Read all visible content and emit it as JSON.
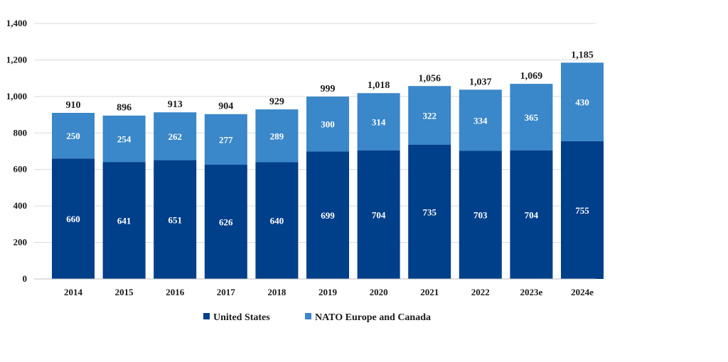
{
  "chart_data": {
    "type": "bar",
    "stacked": true,
    "title": "",
    "xlabel": "",
    "ylabel": "",
    "ylim": [
      0,
      1400
    ],
    "yticks": [
      0,
      200,
      400,
      600,
      800,
      1000,
      1200,
      1400
    ],
    "ytick_labels": [
      "0",
      "200",
      "400",
      "600",
      "800",
      "1,000",
      "1,200",
      "1,400"
    ],
    "grid": true,
    "legend_position": "bottom",
    "categories": [
      "2014",
      "2015",
      "2016",
      "2017",
      "2018",
      "2019",
      "2020",
      "2021",
      "2022",
      "2023e",
      "2024e"
    ],
    "series": [
      {
        "name": "United States",
        "color": "#003f8a",
        "values": [
          660,
          641,
          651,
          626,
          640,
          699,
          704,
          735,
          703,
          704,
          755
        ]
      },
      {
        "name": "NATO Europe and Canada",
        "color": "#3a87c9",
        "values": [
          250,
          254,
          262,
          277,
          289,
          300,
          314,
          322,
          334,
          365,
          430
        ]
      }
    ],
    "totals": [
      910,
      896,
      913,
      904,
      929,
      999,
      1018,
      1056,
      1037,
      1069,
      1185
    ],
    "total_labels": [
      "910",
      "896",
      "913",
      "904",
      "929",
      "999",
      "1,018",
      "1,056",
      "1,037",
      "1,069",
      "1,185"
    ]
  }
}
